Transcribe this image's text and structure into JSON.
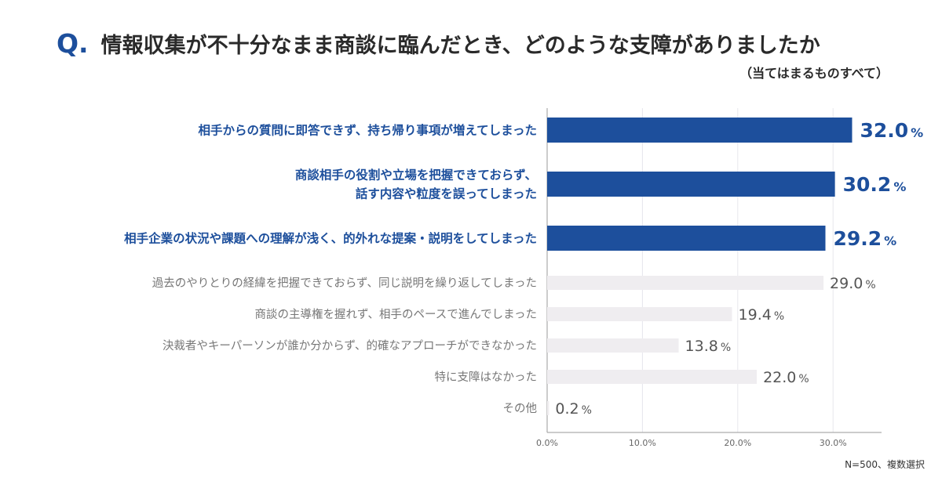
{
  "header": {
    "q_mark": "Q.",
    "title": "情報収集が不十分なまま商談に臨んだとき、どのような支障がありましたか",
    "subtitle": "（当てはまるものすべて）"
  },
  "footnote": "N=500、複数選択",
  "colors": {
    "accent": "#1d4f9c",
    "bar_highlight": "#1d4f9c",
    "bar_muted": "#efedf0",
    "label_highlight": "#1d4f9c",
    "label_muted": "#777777",
    "value_muted": "#555555"
  },
  "chart_data": {
    "type": "bar",
    "orientation": "horizontal",
    "unit": "%",
    "xlim": [
      0,
      35
    ],
    "categories": [
      [
        "相手からの質問に即答できず、持ち帰り事項が増えてしまった"
      ],
      [
        "商談相手の役割や立場を把握できておらず、",
        "話す内容や粒度を誤ってしまった"
      ],
      [
        "相手企業の状況や課題への理解が浅く、的外れな提案・説明をしてしまった"
      ],
      [
        "過去のやりとりの経緯を把握できておらず、同じ説明を繰り返してしまった"
      ],
      [
        "商談の主導権を握れず、相手のペースで進んでしまった"
      ],
      [
        "決裁者やキーパーソンが誰か分からず、的確なアプローチができなかった"
      ],
      [
        "特に支障はなかった"
      ],
      [
        "その他"
      ]
    ],
    "values": [
      32.0,
      30.2,
      29.2,
      29.0,
      19.4,
      13.8,
      22.0,
      0.2
    ],
    "value_labels": [
      "32.0",
      "30.2",
      "29.2",
      "29.0",
      "19.4",
      "13.8",
      "22.0",
      "0.2"
    ],
    "highlighted": [
      true,
      true,
      true,
      false,
      false,
      false,
      false,
      false
    ],
    "xticks": [
      0,
      10,
      20,
      30
    ],
    "xtick_labels": [
      "0.0%",
      "10.0%",
      "20.0%",
      "30.0%"
    ],
    "grid": true
  }
}
